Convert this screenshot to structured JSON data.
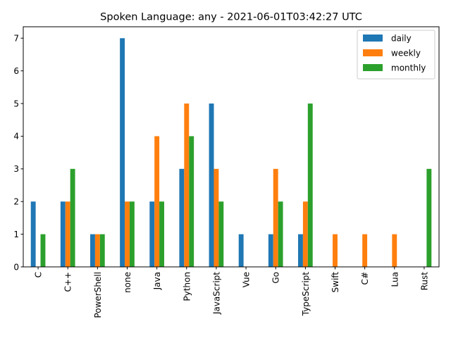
{
  "chart_data": {
    "type": "bar",
    "title": "Spoken Language: any - 2021-06-01T03:42:27 UTC",
    "xlabel": "",
    "ylabel": "",
    "ylim": [
      0,
      7.35
    ],
    "yticks": [
      0,
      1,
      2,
      3,
      4,
      5,
      6,
      7
    ],
    "grid": false,
    "legend_position": "top-right",
    "categories": [
      "C",
      "C++",
      "PowerShell",
      "none",
      "Java",
      "Python",
      "JavaScript",
      "Vue",
      "Go",
      "TypeScript",
      "Swift",
      "C#",
      "Lua",
      "Rust"
    ],
    "series": [
      {
        "name": "daily",
        "color": "#1f77b4",
        "values": [
          2,
          2,
          1,
          7,
          2,
          3,
          5,
          1,
          1,
          1,
          0,
          0,
          0,
          0
        ]
      },
      {
        "name": "weekly",
        "color": "#ff7f0e",
        "values": [
          0,
          2,
          1,
          2,
          4,
          5,
          3,
          0,
          3,
          2,
          1,
          1,
          1,
          0
        ]
      },
      {
        "name": "monthly",
        "color": "#2ca02c",
        "values": [
          1,
          3,
          1,
          2,
          2,
          4,
          2,
          0,
          2,
          5,
          0,
          0,
          0,
          3
        ]
      }
    ]
  }
}
